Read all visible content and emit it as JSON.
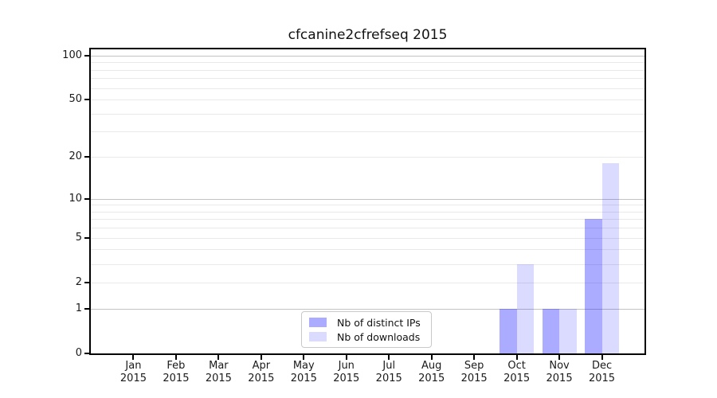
{
  "chart_data": {
    "type": "bar",
    "title": "cfcanine2cfrefseq 2015",
    "categories": [
      "Jan 2015",
      "Feb 2015",
      "Mar 2015",
      "Apr 2015",
      "May 2015",
      "Jun 2015",
      "Jul 2015",
      "Aug 2015",
      "Sep 2015",
      "Oct 2015",
      "Nov 2015",
      "Dec 2015"
    ],
    "series": [
      {
        "name": "Nb of distinct IPs",
        "color": "rgba(0,0,255,0.33)",
        "values": [
          0,
          0,
          0,
          0,
          0,
          0,
          0,
          0,
          0,
          1,
          1,
          7
        ]
      },
      {
        "name": "Nb of downloads",
        "color": "rgba(0,0,255,0.14)",
        "values": [
          0,
          0,
          0,
          0,
          0,
          0,
          0,
          0,
          0,
          3,
          1,
          18
        ]
      }
    ],
    "xlabel": "",
    "ylabel": "",
    "yaxis": {
      "scale": "log1p",
      "ticks": [
        0,
        1,
        2,
        5,
        10,
        20,
        50,
        100
      ],
      "major_grid": [
        1,
        10,
        100
      ],
      "minor_grid": [
        2,
        3,
        4,
        5,
        6,
        7,
        8,
        9,
        20,
        30,
        40,
        50,
        60,
        70,
        80,
        90
      ],
      "max": 110
    },
    "grid": true,
    "legend_position": "lower center"
  }
}
